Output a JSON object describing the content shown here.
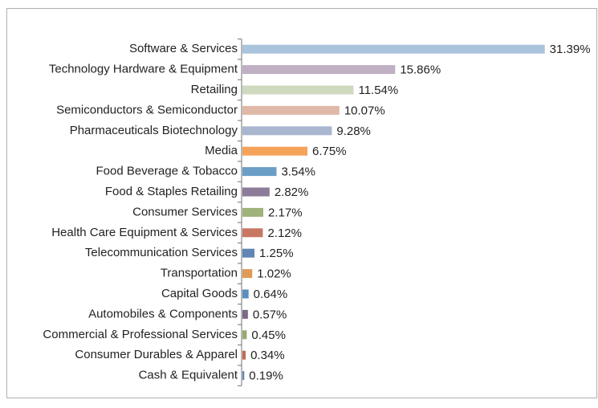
{
  "chart_data": {
    "type": "barh",
    "categories": [
      "Software & Services",
      "Technology Hardware & Equipment",
      "Retailing",
      "Semiconductors & Semiconductor",
      "Pharmaceuticals Biotechnology",
      "Media",
      "Food Beverage & Tobacco",
      "Food & Staples Retailing",
      "Consumer Services",
      "Health Care Equipment & Services",
      "Telecommunication Services",
      "Transportation",
      "Capital Goods",
      "Automobiles & Components",
      "Commercial & Professional Services",
      "Consumer Durables & Apparel",
      "Cash & Equivalent"
    ],
    "values": [
      31.39,
      15.86,
      11.54,
      10.07,
      9.28,
      6.75,
      3.54,
      2.82,
      2.17,
      2.12,
      1.25,
      1.02,
      0.64,
      0.57,
      0.45,
      0.34,
      0.19
    ],
    "value_labels": [
      "31.39%",
      "15.86%",
      "11.54%",
      "10.07%",
      "9.28%",
      "6.75%",
      "3.54%",
      "2.82%",
      "2.17%",
      "2.12%",
      "1.25%",
      "1.02%",
      "0.64%",
      "0.57%",
      "0.45%",
      "0.34%",
      "0.19%"
    ],
    "colors": [
      "#a9c4dc",
      "#bfb0c4",
      "#cfd9be",
      "#e0b8a8",
      "#a9b6d0",
      "#f6a35a",
      "#6a9ec6",
      "#8e7a99",
      "#9fb27a",
      "#c87762",
      "#5f86b4",
      "#e09b58",
      "#5a8fc0",
      "#7b6a8a",
      "#96ab73",
      "#c46a55",
      "#5f86b4"
    ]
  }
}
